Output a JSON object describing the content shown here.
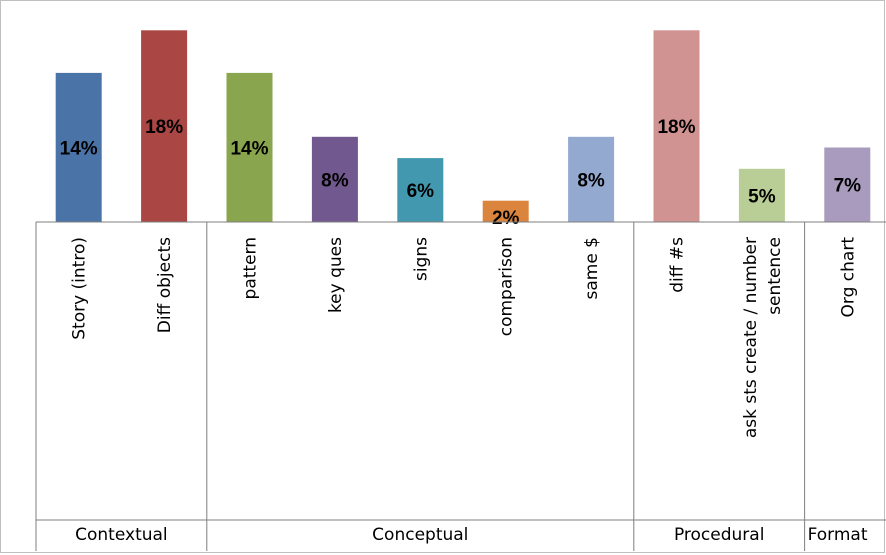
{
  "chart_data": {
    "type": "bar",
    "categories": [
      "Story (intro)",
      "Diff objects",
      "pattern",
      "key ques",
      "signs",
      "comparison",
      "same $",
      "diff #s",
      "ask sts create / number sentence",
      "Org chart"
    ],
    "category_lines": [
      [
        "Story (intro)"
      ],
      [
        "Diff objects"
      ],
      [
        "pattern"
      ],
      [
        "key ques"
      ],
      [
        "signs"
      ],
      [
        "comparison"
      ],
      [
        "same $"
      ],
      [
        "diff #s"
      ],
      [
        "ask sts create / number",
        "sentence"
      ],
      [
        "Org chart"
      ]
    ],
    "values": [
      14,
      18,
      14,
      8,
      6,
      2,
      8,
      18,
      5,
      7
    ],
    "value_labels": [
      "14%",
      "18%",
      "14%",
      "8%",
      "6%",
      "2%",
      "8%",
      "18%",
      "5%",
      "7%"
    ],
    "colors": [
      "#4a73a8",
      "#aa4643",
      "#89a54e",
      "#71588f",
      "#4198af",
      "#db843d",
      "#93a9cf",
      "#d19392",
      "#b9cd96",
      "#a99bbd"
    ],
    "groups": [
      {
        "label": "Contextual",
        "count": 2
      },
      {
        "label": "Conceptual",
        "count": 5
      },
      {
        "label": "Procedural",
        "count": 2
      },
      {
        "label": "Format",
        "count": 1
      }
    ],
    "ylim": [
      0,
      18.5
    ],
    "grid": false,
    "legend": "none"
  }
}
